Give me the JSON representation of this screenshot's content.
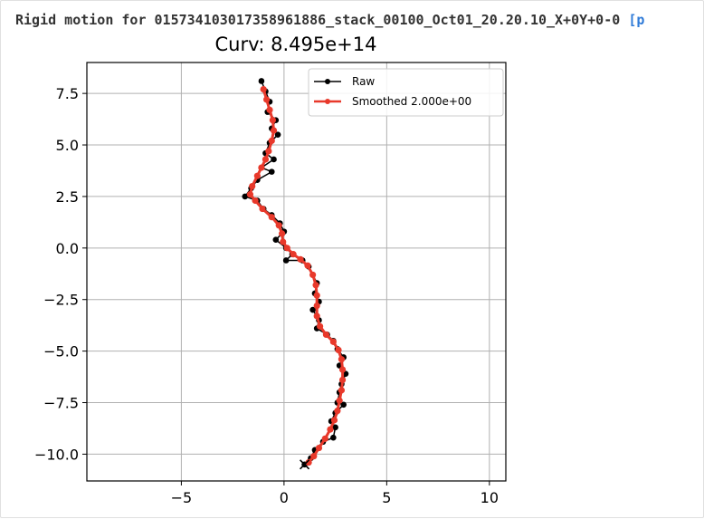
{
  "header": {
    "text": "Rigid motion for 015734103017358961886_stack_00100_Oct01_20.20.10_X+0Y+0-0 ",
    "link_text": "[p"
  },
  "chart_data": {
    "type": "line",
    "title": "Curv: 8.495e+14",
    "xlabel": "",
    "ylabel": "",
    "xlim": [
      -9.6,
      10.8
    ],
    "ylim": [
      -11.3,
      9.0
    ],
    "xticks": [
      -5,
      0,
      5,
      10
    ],
    "xtick_labels": [
      "−5",
      "0",
      "5",
      "10"
    ],
    "yticks": [
      7.5,
      5.0,
      2.5,
      0.0,
      -2.5,
      -5.0,
      -7.5,
      -10.0
    ],
    "ytick_labels": [
      "7.5",
      "5.0",
      "2.5",
      "0.0",
      "−2.5",
      "−5.0",
      "−7.5",
      "−10.0"
    ],
    "grid": true,
    "legend_position": "top-right",
    "end_marker": {
      "x": 1.0,
      "y": -10.5,
      "symbol": "x"
    },
    "series": [
      {
        "name": "Raw",
        "color": "#000000",
        "points": [
          [
            -1.1,
            8.1
          ],
          [
            -0.9,
            7.6
          ],
          [
            -0.7,
            7.1
          ],
          [
            -0.8,
            6.6
          ],
          [
            -0.4,
            6.2
          ],
          [
            -0.6,
            5.8
          ],
          [
            -0.3,
            5.5
          ],
          [
            -0.7,
            5.1
          ],
          [
            -0.9,
            4.6
          ],
          [
            -0.5,
            4.3
          ],
          [
            -1.1,
            3.9
          ],
          [
            -0.6,
            3.7
          ],
          [
            -1.3,
            3.3
          ],
          [
            -1.6,
            2.9
          ],
          [
            -1.9,
            2.5
          ],
          [
            -1.3,
            2.3
          ],
          [
            -1.0,
            1.9
          ],
          [
            -0.6,
            1.6
          ],
          [
            -0.2,
            1.2
          ],
          [
            0.0,
            0.8
          ],
          [
            -0.4,
            0.4
          ],
          [
            0.1,
            0.0
          ],
          [
            0.4,
            -0.3
          ],
          [
            0.1,
            -0.6
          ],
          [
            0.9,
            -0.6
          ],
          [
            1.2,
            -0.9
          ],
          [
            1.4,
            -1.3
          ],
          [
            1.6,
            -1.7
          ],
          [
            1.5,
            -2.2
          ],
          [
            1.7,
            -2.6
          ],
          [
            1.4,
            -3.0
          ],
          [
            1.7,
            -3.5
          ],
          [
            1.6,
            -3.9
          ],
          [
            2.1,
            -4.2
          ],
          [
            2.4,
            -4.5
          ],
          [
            2.6,
            -4.9
          ],
          [
            2.9,
            -5.3
          ],
          [
            2.7,
            -5.7
          ],
          [
            3.0,
            -6.1
          ],
          [
            2.8,
            -6.6
          ],
          [
            2.7,
            -7.0
          ],
          [
            2.6,
            -7.5
          ],
          [
            2.9,
            -7.6
          ],
          [
            2.5,
            -8.0
          ],
          [
            2.3,
            -8.4
          ],
          [
            2.5,
            -8.7
          ],
          [
            2.4,
            -9.2
          ],
          [
            1.9,
            -9.4
          ],
          [
            1.5,
            -9.8
          ],
          [
            1.3,
            -10.2
          ],
          [
            1.0,
            -10.5
          ]
        ]
      },
      {
        "name": "Smoothed 2.000e+00",
        "color": "#e8392b",
        "points": [
          [
            -1.0,
            7.7
          ],
          [
            -0.85,
            7.2
          ],
          [
            -0.7,
            6.7
          ],
          [
            -0.55,
            6.2
          ],
          [
            -0.5,
            5.7
          ],
          [
            -0.6,
            5.2
          ],
          [
            -0.75,
            4.7
          ],
          [
            -0.9,
            4.3
          ],
          [
            -1.1,
            3.9
          ],
          [
            -1.3,
            3.5
          ],
          [
            -1.55,
            3.0
          ],
          [
            -1.65,
            2.6
          ],
          [
            -1.4,
            2.3
          ],
          [
            -1.05,
            1.9
          ],
          [
            -0.6,
            1.5
          ],
          [
            -0.25,
            1.1
          ],
          [
            -0.1,
            0.7
          ],
          [
            -0.05,
            0.3
          ],
          [
            0.15,
            0.0
          ],
          [
            0.45,
            -0.3
          ],
          [
            0.8,
            -0.55
          ],
          [
            1.15,
            -0.85
          ],
          [
            1.4,
            -1.3
          ],
          [
            1.55,
            -1.8
          ],
          [
            1.6,
            -2.3
          ],
          [
            1.6,
            -2.8
          ],
          [
            1.6,
            -3.3
          ],
          [
            1.75,
            -3.8
          ],
          [
            2.05,
            -4.2
          ],
          [
            2.4,
            -4.55
          ],
          [
            2.65,
            -4.95
          ],
          [
            2.8,
            -5.4
          ],
          [
            2.85,
            -5.9
          ],
          [
            2.85,
            -6.4
          ],
          [
            2.8,
            -6.9
          ],
          [
            2.7,
            -7.4
          ],
          [
            2.6,
            -7.9
          ],
          [
            2.45,
            -8.35
          ],
          [
            2.25,
            -8.8
          ],
          [
            2.0,
            -9.25
          ],
          [
            1.7,
            -9.7
          ],
          [
            1.45,
            -10.1
          ],
          [
            1.2,
            -10.4
          ]
        ]
      }
    ]
  }
}
